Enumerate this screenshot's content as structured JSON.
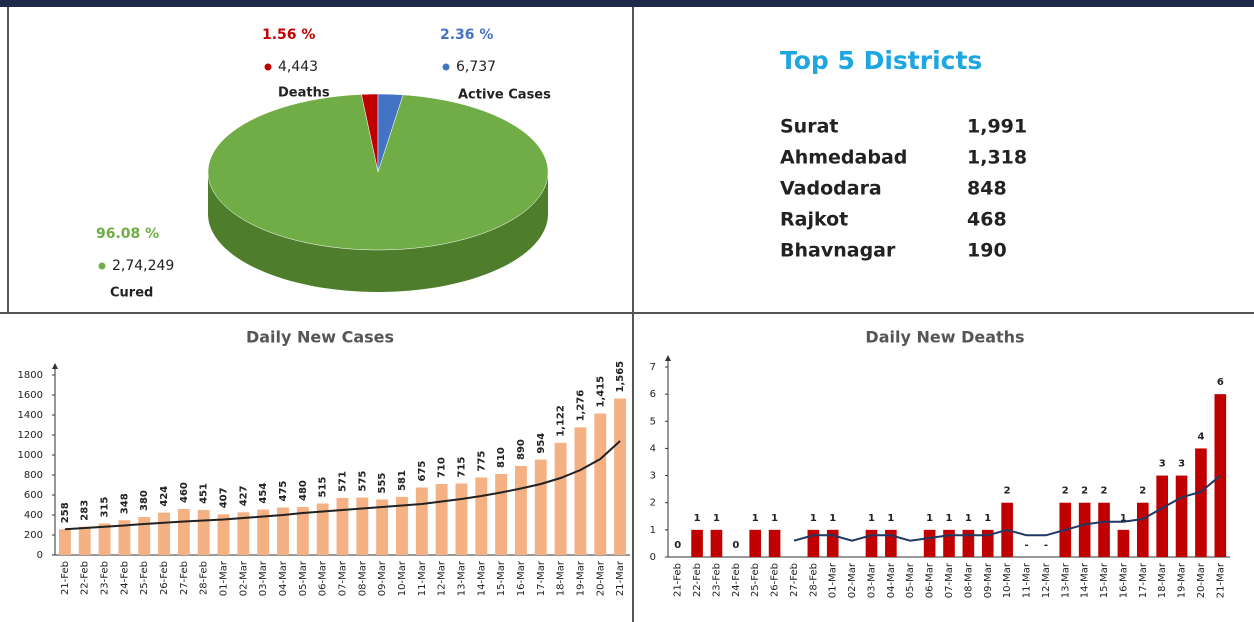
{
  "chart_data": [
    {
      "type": "pie",
      "categories": [
        "Deaths",
        "Active Cases",
        "Cured"
      ],
      "values": [
        1.56,
        2.36,
        96.08
      ],
      "value_labels": [
        "1.56 %",
        "2.36 %",
        "96.08 %"
      ],
      "counts": [
        4443,
        6737,
        274249
      ],
      "count_labels": [
        "4,443",
        "6,737",
        "2,74,249"
      ],
      "colors": [
        "#c00000",
        "#4472c4",
        "#70ad47"
      ]
    },
    {
      "type": "bar",
      "title": "Daily New Cases",
      "color": "#f4b183",
      "trend_color": "#222222",
      "categories": [
        "21-Feb",
        "22-Feb",
        "23-Feb",
        "24-Feb",
        "25-Feb",
        "26-Feb",
        "27-Feb",
        "28-Feb",
        "01-Mar",
        "02-Mar",
        "03-Mar",
        "04-Mar",
        "05-Mar",
        "06-Mar",
        "07-Mar",
        "08-Mar",
        "09-Mar",
        "10-Mar",
        "11-Mar",
        "12-Mar",
        "13-Mar",
        "14-Mar",
        "15-Mar",
        "16-Mar",
        "17-Mar",
        "18-Mar",
        "19-Mar",
        "20-Mar",
        "21-Mar"
      ],
      "values": [
        258,
        283,
        315,
        348,
        380,
        424,
        460,
        451,
        407,
        427,
        454,
        475,
        480,
        515,
        571,
        575,
        555,
        581,
        675,
        710,
        715,
        775,
        810,
        890,
        954,
        1122,
        1276,
        1415,
        1565
      ],
      "value_labels": [
        "258",
        "283",
        "315",
        "348",
        "380",
        "424",
        "460",
        "451",
        "407",
        "427",
        "454",
        "475",
        "480",
        "515",
        "571",
        "575",
        "555",
        "581",
        "675",
        "710",
        "715",
        "775",
        "810",
        "890",
        "954",
        "1,122",
        "1,276",
        "1,415",
        "1,565"
      ],
      "trend": [
        258,
        270,
        282,
        295,
        310,
        322,
        335,
        345,
        355,
        370,
        385,
        400,
        420,
        435,
        450,
        465,
        480,
        495,
        510,
        535,
        560,
        590,
        625,
        665,
        710,
        770,
        850,
        960,
        1140
      ],
      "ylim": [
        0,
        1800
      ],
      "yticks": [
        0,
        200,
        400,
        600,
        800,
        1000,
        1200,
        1400,
        1600,
        1800
      ],
      "label_rotate": true
    },
    {
      "type": "bar",
      "title": "Daily New Deaths",
      "color": "#c00000",
      "trend_color": "#1f3864",
      "categories": [
        "21-Feb",
        "22-Feb",
        "23-Feb",
        "24-Feb",
        "25-Feb",
        "26-Feb",
        "27-Feb",
        "28-Feb",
        "01-Mar",
        "02-Mar",
        "03-Mar",
        "04-Mar",
        "05-Mar",
        "06-Mar",
        "07-Mar",
        "08-Mar",
        "09-Mar",
        "10-Mar",
        "11-Mar",
        "12-Mar",
        "13-Mar",
        "14-Mar",
        "15-Mar",
        "16-Mar",
        "17-Mar",
        "18-Mar",
        "19-Mar",
        "20-Mar",
        "21-Mar"
      ],
      "values": [
        0,
        1,
        1,
        0,
        1,
        1,
        null,
        1,
        1,
        null,
        1,
        1,
        null,
        1,
        1,
        1,
        1,
        2,
        null,
        null,
        2,
        2,
        2,
        1,
        2,
        3,
        3,
        4,
        6
      ],
      "value_labels": [
        "0",
        "1",
        "1",
        "0",
        "1",
        "1",
        null,
        "1",
        "1",
        null,
        "1",
        "1",
        null,
        "1",
        "1",
        "1",
        "1",
        "2",
        "-",
        "-",
        "2",
        "2",
        "2",
        "1",
        "2",
        "3",
        "3",
        "4",
        "6"
      ],
      "trend": [
        null,
        null,
        null,
        null,
        null,
        null,
        0.6,
        0.8,
        0.8,
        0.6,
        0.8,
        0.8,
        0.6,
        0.7,
        0.8,
        0.8,
        0.8,
        1.0,
        0.8,
        0.8,
        1.0,
        1.2,
        1.3,
        1.3,
        1.4,
        1.8,
        2.2,
        2.4,
        3.0
      ],
      "ylim": [
        0,
        7
      ],
      "yticks": [
        0,
        1,
        2,
        3,
        4,
        5,
        6,
        7
      ],
      "label_rotate": false
    }
  ],
  "districts": {
    "title": "Top 5 Districts",
    "rows": [
      [
        "Surat",
        "1,991"
      ],
      [
        "Ahmedabad",
        "1,318"
      ],
      [
        "Vadodara",
        "848"
      ],
      [
        "Rajkot",
        "468"
      ],
      [
        "Bhavnagar",
        "190"
      ]
    ]
  }
}
